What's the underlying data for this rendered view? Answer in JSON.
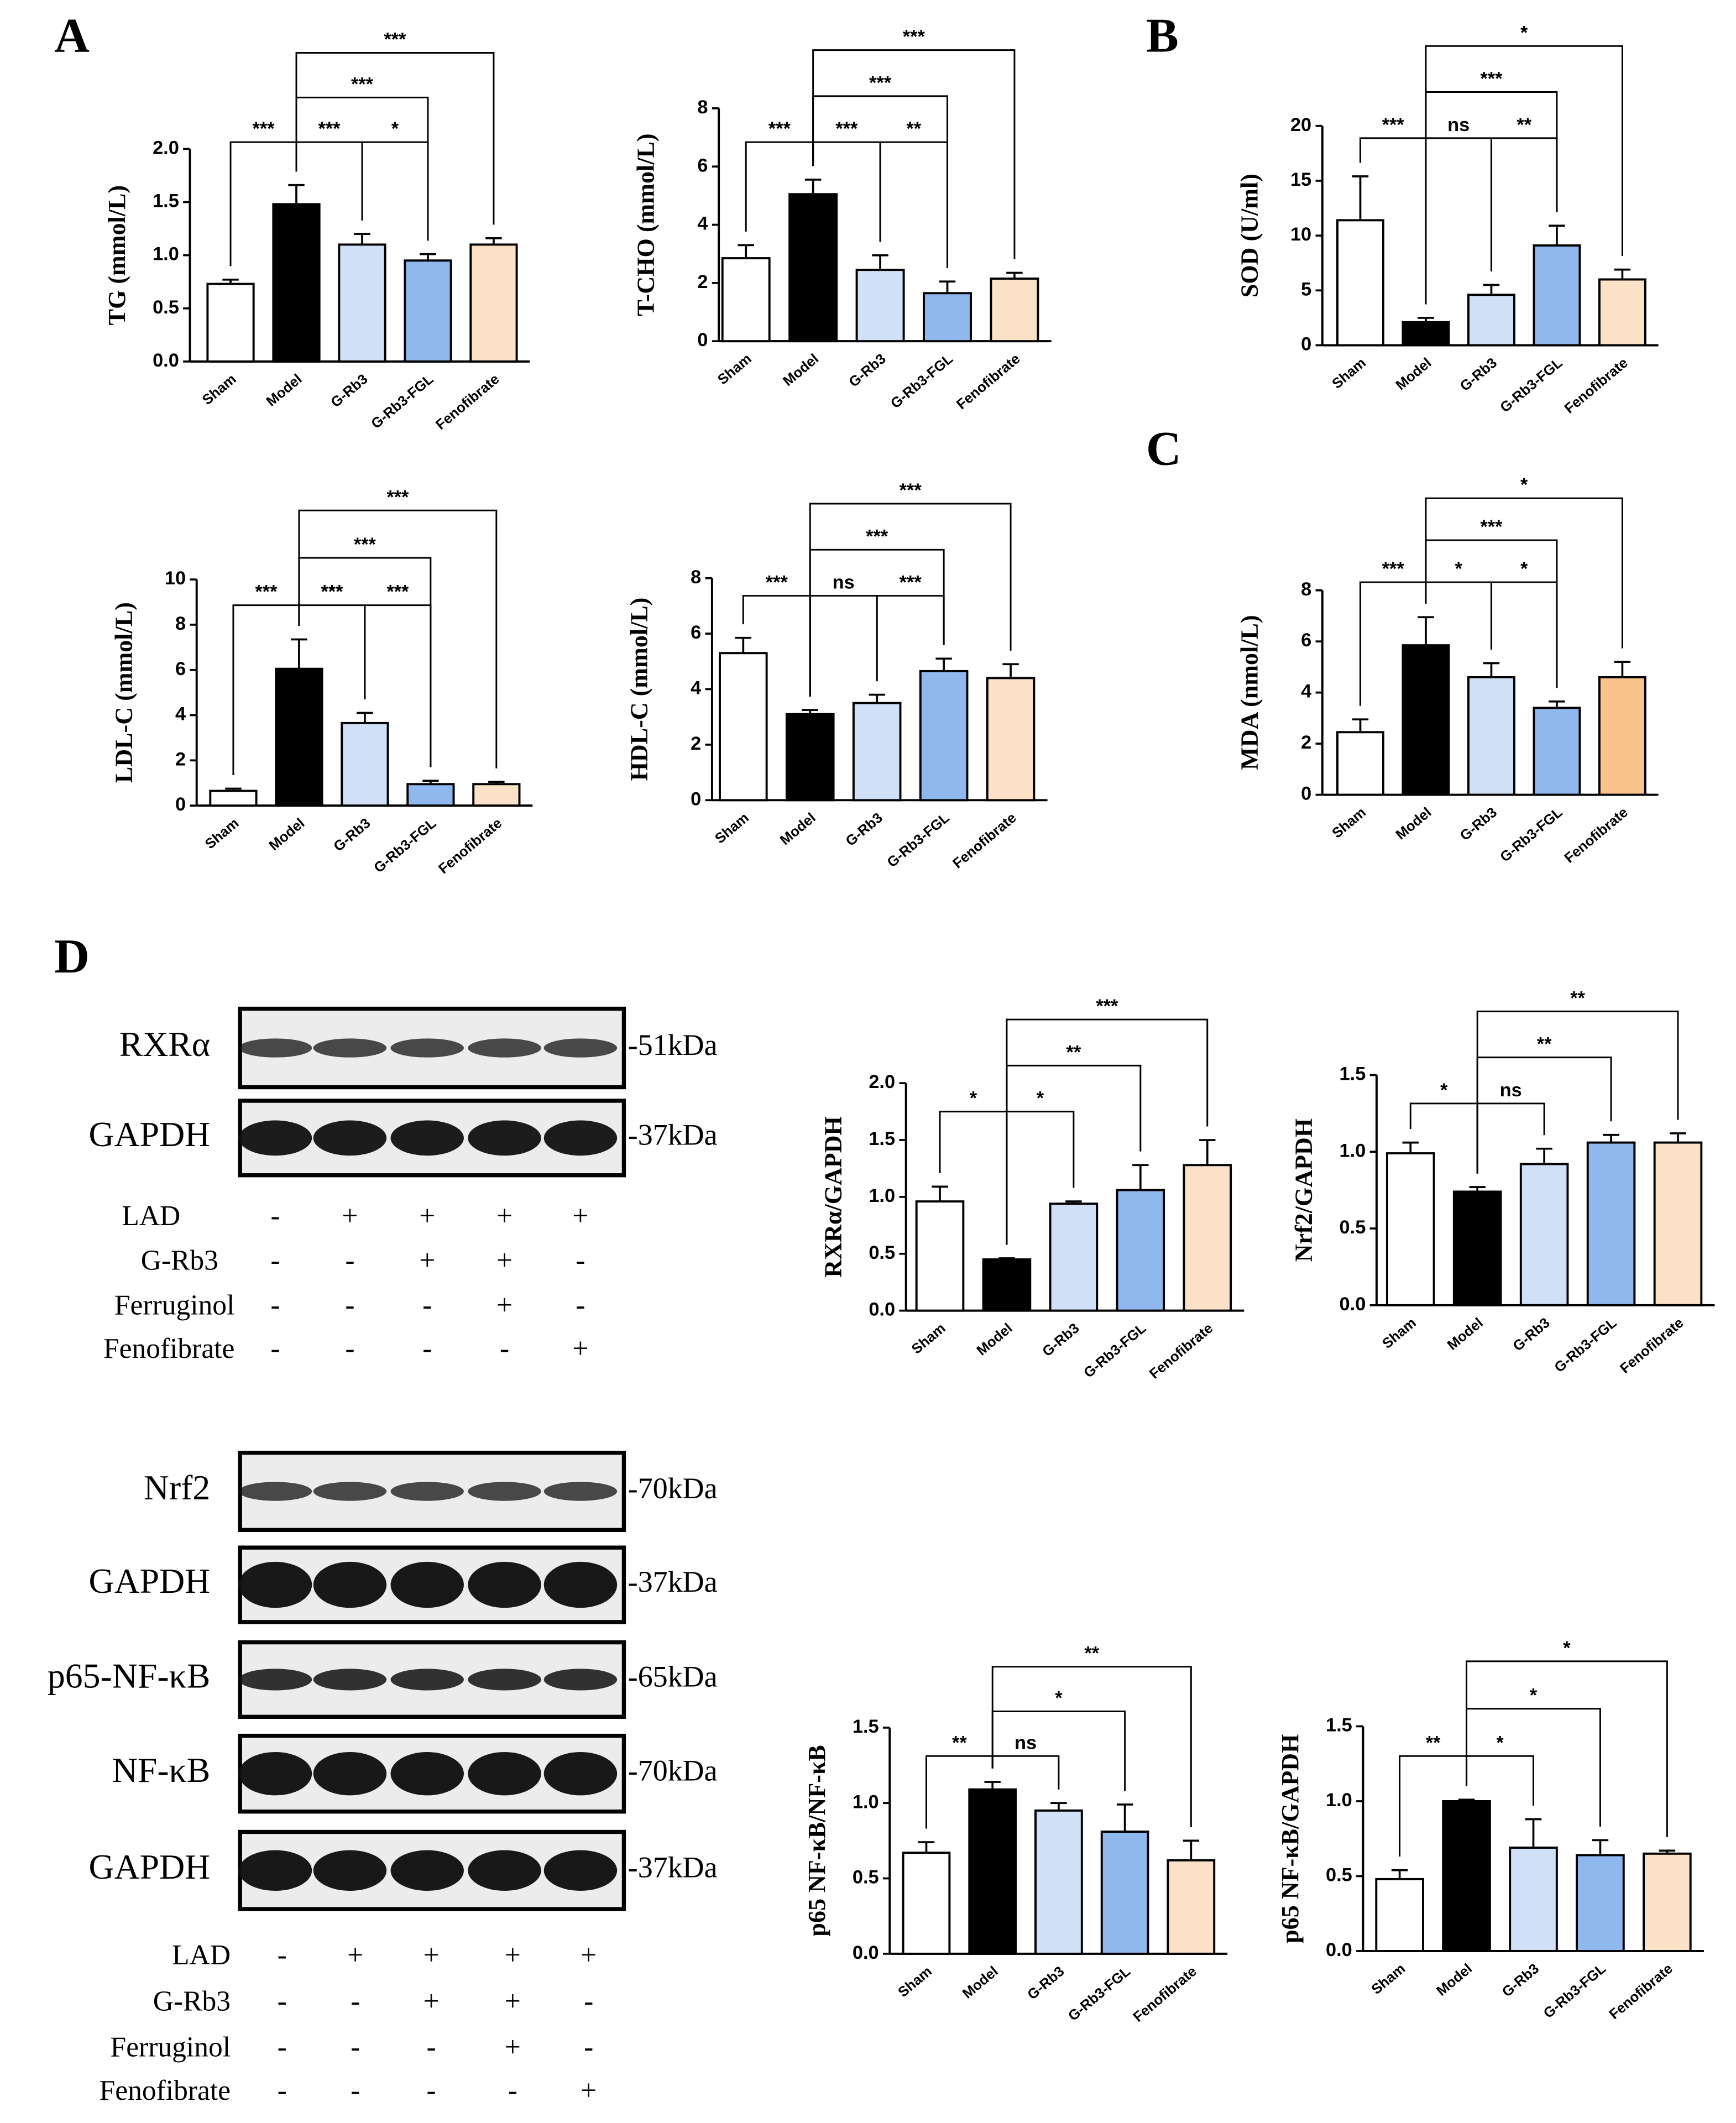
{
  "panels": [
    "A",
    "B",
    "C",
    "D"
  ],
  "chart_data": [
    {
      "type": "bar",
      "ylabel": "TG (mmol/L)",
      "categories": [
        "Sham",
        "Model",
        "G-Rb3",
        "G-Rb3-FGL",
        "Fenofibrate"
      ],
      "values": [
        0.73,
        1.48,
        1.1,
        0.95,
        1.1
      ],
      "errors": [
        0.04,
        0.18,
        0.1,
        0.06,
        0.06
      ],
      "colors": [
        "#ffffff",
        "#000000",
        "#cfe0f7",
        "#8fb8ee",
        "#fbe1c6"
      ],
      "ylim": [
        0,
        2
      ],
      "yticks": [
        {
          "value": 0,
          "label": "0.0"
        },
        0.5,
        {
          "value": 1,
          "label": "1.0"
        },
        1.5,
        {
          "value": 2,
          "label": "2.0"
        }
      ],
      "comparisons": [
        {
          "pair": [
            0,
            1
          ],
          "label": "***"
        },
        {
          "pair": [
            1,
            2
          ],
          "label": "***"
        },
        {
          "pair": [
            2,
            3
          ],
          "label": "*"
        },
        {
          "pair": [
            1,
            3
          ],
          "label": "***"
        },
        {
          "pair": [
            1,
            4
          ],
          "label": "***"
        }
      ]
    },
    {
      "type": "bar",
      "ylabel": "T-CHO (mmol/L)",
      "categories": [
        "Sham",
        "Model",
        "G-Rb3",
        "G-Rb3-FGL",
        "Fenofibrate"
      ],
      "values": [
        2.85,
        5.05,
        2.45,
        1.65,
        2.15
      ],
      "errors": [
        0.45,
        0.5,
        0.5,
        0.4,
        0.2
      ],
      "colors": [
        "#ffffff",
        "#000000",
        "#cfe0f7",
        "#8fb8ee",
        "#fbe1c6"
      ],
      "ylim": [
        0,
        8
      ],
      "yticks": [
        0,
        2,
        4,
        6,
        8
      ],
      "comparisons": [
        {
          "pair": [
            0,
            1
          ],
          "label": "***"
        },
        {
          "pair": [
            1,
            2
          ],
          "label": "***"
        },
        {
          "pair": [
            2,
            3
          ],
          "label": "**"
        },
        {
          "pair": [
            1,
            3
          ],
          "label": "***"
        },
        {
          "pair": [
            1,
            4
          ],
          "label": "***"
        }
      ]
    },
    {
      "type": "bar",
      "ylabel": "SOD (U/ml)",
      "categories": [
        "Sham",
        "Model",
        "G-Rb3",
        "G-Rb3-FGL",
        "Fenofibrate"
      ],
      "values": [
        11.4,
        2.1,
        4.6,
        9.1,
        6.0
      ],
      "errors": [
        4.0,
        0.4,
        0.9,
        1.8,
        0.9
      ],
      "colors": [
        "#ffffff",
        "#000000",
        "#cfe0f7",
        "#8fb8ee",
        "#fbe1c6"
      ],
      "ylim": [
        0,
        20
      ],
      "yticks": [
        0,
        5,
        10,
        15,
        20
      ],
      "comparisons": [
        {
          "pair": [
            0,
            1
          ],
          "label": "***"
        },
        {
          "pair": [
            1,
            2
          ],
          "label": "ns"
        },
        {
          "pair": [
            2,
            3
          ],
          "label": "**"
        },
        {
          "pair": [
            1,
            3
          ],
          "label": "***"
        },
        {
          "pair": [
            1,
            4
          ],
          "label": "*"
        }
      ]
    },
    {
      "type": "bar",
      "ylabel": "LDL-C (mmol/L)",
      "categories": [
        "Sham",
        "Model",
        "G-Rb3",
        "G-Rb3-FGL",
        "Fenofibrate"
      ],
      "values": [
        0.65,
        6.05,
        3.65,
        0.95,
        0.95
      ],
      "errors": [
        0.1,
        1.3,
        0.45,
        0.15,
        0.1
      ],
      "colors": [
        "#ffffff",
        "#000000",
        "#cfe0f7",
        "#8fb8ee",
        "#fbe1c6"
      ],
      "ylim": [
        0,
        10
      ],
      "yticks": [
        0,
        2,
        4,
        6,
        8,
        10
      ],
      "comparisons": [
        {
          "pair": [
            0,
            1
          ],
          "label": "***"
        },
        {
          "pair": [
            1,
            2
          ],
          "label": "***"
        },
        {
          "pair": [
            2,
            3
          ],
          "label": "***"
        },
        {
          "pair": [
            1,
            3
          ],
          "label": "***"
        },
        {
          "pair": [
            1,
            4
          ],
          "label": "***"
        }
      ]
    },
    {
      "type": "bar",
      "ylabel": "HDL-C (mmol/L)",
      "categories": [
        "Sham",
        "Model",
        "G-Rb3",
        "G-Rb3-FGL",
        "Fenofibrate"
      ],
      "values": [
        5.3,
        3.1,
        3.5,
        4.65,
        4.4
      ],
      "errors": [
        0.55,
        0.15,
        0.3,
        0.45,
        0.5
      ],
      "colors": [
        "#ffffff",
        "#000000",
        "#cfe0f7",
        "#8fb8ee",
        "#fbe1c6"
      ],
      "ylim": [
        0,
        8
      ],
      "yticks": [
        0,
        2,
        4,
        6,
        8
      ],
      "comparisons": [
        {
          "pair": [
            0,
            1
          ],
          "label": "***"
        },
        {
          "pair": [
            1,
            2
          ],
          "label": "ns"
        },
        {
          "pair": [
            2,
            3
          ],
          "label": "***"
        },
        {
          "pair": [
            1,
            3
          ],
          "label": "***"
        },
        {
          "pair": [
            1,
            4
          ],
          "label": "***"
        }
      ]
    },
    {
      "type": "bar",
      "ylabel": "MDA (nmol/L)",
      "categories": [
        "Sham",
        "Model",
        "G-Rb3",
        "G-Rb3-FGL",
        "Fenofibrate"
      ],
      "values": [
        2.45,
        5.85,
        4.6,
        3.4,
        4.6
      ],
      "errors": [
        0.5,
        1.1,
        0.55,
        0.25,
        0.6
      ],
      "colors": [
        "#ffffff",
        "#000000",
        "#cfe0f7",
        "#8fb8ee",
        "#f9c48c"
      ],
      "ylim": [
        0,
        8
      ],
      "yticks": [
        0,
        2,
        4,
        6,
        8
      ],
      "comparisons": [
        {
          "pair": [
            0,
            1
          ],
          "label": "***"
        },
        {
          "pair": [
            1,
            2
          ],
          "label": "*"
        },
        {
          "pair": [
            2,
            3
          ],
          "label": "*"
        },
        {
          "pair": [
            1,
            3
          ],
          "label": "***"
        },
        {
          "pair": [
            1,
            4
          ],
          "label": "*"
        }
      ]
    },
    {
      "type": "bar",
      "ylabel": "RXRα/GAPDH",
      "categories": [
        "Sham",
        "Model",
        "G-Rb3",
        "G-Rb3-FGL",
        "Fenofibrate"
      ],
      "values": [
        0.96,
        0.45,
        0.94,
        1.06,
        1.28
      ],
      "errors": [
        0.13,
        0.01,
        0.02,
        0.22,
        0.22
      ],
      "colors": [
        "#ffffff",
        "#000000",
        "#cfe0f7",
        "#8fb8ee",
        "#fbe1c6"
      ],
      "ylim": [
        0,
        2
      ],
      "yticks": [
        {
          "value": 0,
          "label": "0.0"
        },
        0.5,
        {
          "value": 1,
          "label": "1.0"
        },
        1.5,
        {
          "value": 2,
          "label": "2.0"
        }
      ],
      "comparisons": [
        {
          "pair": [
            0,
            1
          ],
          "label": "*"
        },
        {
          "pair": [
            1,
            2
          ],
          "label": "*"
        },
        {
          "pair": [
            1,
            3
          ],
          "label": "**"
        },
        {
          "pair": [
            1,
            4
          ],
          "label": "***"
        }
      ]
    },
    {
      "type": "bar",
      "ylabel": "Nrf2/GAPDH",
      "categories": [
        "Sham",
        "Model",
        "G-Rb3",
        "G-Rb3-FGL",
        "Fenofibrate"
      ],
      "values": [
        0.99,
        0.74,
        0.92,
        1.06,
        1.06
      ],
      "errors": [
        0.07,
        0.03,
        0.1,
        0.05,
        0.06
      ],
      "colors": [
        "#ffffff",
        "#000000",
        "#cfe0f7",
        "#8fb8ee",
        "#fbe1c6"
      ],
      "ylim": [
        0,
        1.5
      ],
      "yticks": [
        {
          "value": 0,
          "label": "0.0"
        },
        0.5,
        {
          "value": 1,
          "label": "1.0"
        },
        1.5
      ],
      "comparisons": [
        {
          "pair": [
            0,
            1
          ],
          "label": "*"
        },
        {
          "pair": [
            1,
            2
          ],
          "label": "ns"
        },
        {
          "pair": [
            1,
            3
          ],
          "label": "**"
        },
        {
          "pair": [
            1,
            4
          ],
          "label": "**"
        }
      ]
    },
    {
      "type": "bar",
      "ylabel": "p65 NF-κB/NF-κB",
      "categories": [
        "Sham",
        "Model",
        "G-Rb3",
        "G-Rb3-FGL",
        "Fenofibrate"
      ],
      "values": [
        0.67,
        1.09,
        0.95,
        0.81,
        0.62
      ],
      "errors": [
        0.07,
        0.05,
        0.05,
        0.18,
        0.13
      ],
      "colors": [
        "#ffffff",
        "#000000",
        "#cfe0f7",
        "#8fb8ee",
        "#fbe1c6"
      ],
      "ylim": [
        0,
        1.5
      ],
      "yticks": [
        {
          "value": 0,
          "label": "0.0"
        },
        0.5,
        {
          "value": 1,
          "label": "1.0"
        },
        1.5
      ],
      "comparisons": [
        {
          "pair": [
            0,
            1
          ],
          "label": "**"
        },
        {
          "pair": [
            1,
            2
          ],
          "label": "ns"
        },
        {
          "pair": [
            1,
            3
          ],
          "label": "*"
        },
        {
          "pair": [
            1,
            4
          ],
          "label": "**"
        }
      ]
    },
    {
      "type": "bar",
      "ylabel": "p65 NF-κB/GAPDH",
      "categories": [
        "Sham",
        "Model",
        "G-Rb3",
        "G-Rb3-FGL",
        "Fenofibrate"
      ],
      "values": [
        0.48,
        1.0,
        0.69,
        0.64,
        0.65
      ],
      "errors": [
        0.06,
        0.01,
        0.19,
        0.1,
        0.02
      ],
      "colors": [
        "#ffffff",
        "#000000",
        "#cfe0f7",
        "#8fb8ee",
        "#fbe1c6"
      ],
      "ylim": [
        0,
        1.5
      ],
      "yticks": [
        {
          "value": 0,
          "label": "0.0"
        },
        0.5,
        {
          "value": 1,
          "label": "1.0"
        },
        1.5
      ],
      "comparisons": [
        {
          "pair": [
            0,
            1
          ],
          "label": "**"
        },
        {
          "pair": [
            1,
            2
          ],
          "label": "*"
        },
        {
          "pair": [
            1,
            3
          ],
          "label": "*"
        },
        {
          "pair": [
            1,
            4
          ],
          "label": "*"
        }
      ]
    }
  ],
  "blots": [
    {
      "rows": [
        {
          "name": "RXRα",
          "kda": "-51kDa"
        },
        {
          "name": "GAPDH",
          "kda": "-37kDa"
        }
      ],
      "treatments": [
        {
          "label": "LAD",
          "signs": [
            "-",
            "+",
            "+",
            "+",
            "+"
          ]
        },
        {
          "label": "G-Rb3",
          "signs": [
            "-",
            "-",
            "+",
            "+",
            "-"
          ]
        },
        {
          "label": "Ferruginol",
          "signs": [
            "-",
            "-",
            "-",
            "+",
            "-"
          ]
        },
        {
          "label": "Fenofibrate",
          "signs": [
            "-",
            "-",
            "-",
            "-",
            "+"
          ]
        }
      ]
    },
    {
      "rows": [
        {
          "name": "Nrf2",
          "kda": "-70kDa"
        },
        {
          "name": "GAPDH",
          "kda": "-37kDa"
        },
        {
          "name": "p65-NF-κB",
          "kda": "-65kDa"
        },
        {
          "name": "NF-κB",
          "kda": "-70kDa"
        },
        {
          "name": "GAPDH",
          "kda": "-37kDa"
        }
      ],
      "treatments": [
        {
          "label": "LAD",
          "signs": [
            "-",
            "+",
            "+",
            "+",
            "+"
          ]
        },
        {
          "label": "G-Rb3",
          "signs": [
            "-",
            "-",
            "+",
            "+",
            "-"
          ]
        },
        {
          "label": "Ferruginol",
          "signs": [
            "-",
            "-",
            "-",
            "+",
            "-"
          ]
        },
        {
          "label": "Fenofibrate",
          "signs": [
            "-",
            "-",
            "-",
            "-",
            "+"
          ]
        }
      ]
    }
  ]
}
